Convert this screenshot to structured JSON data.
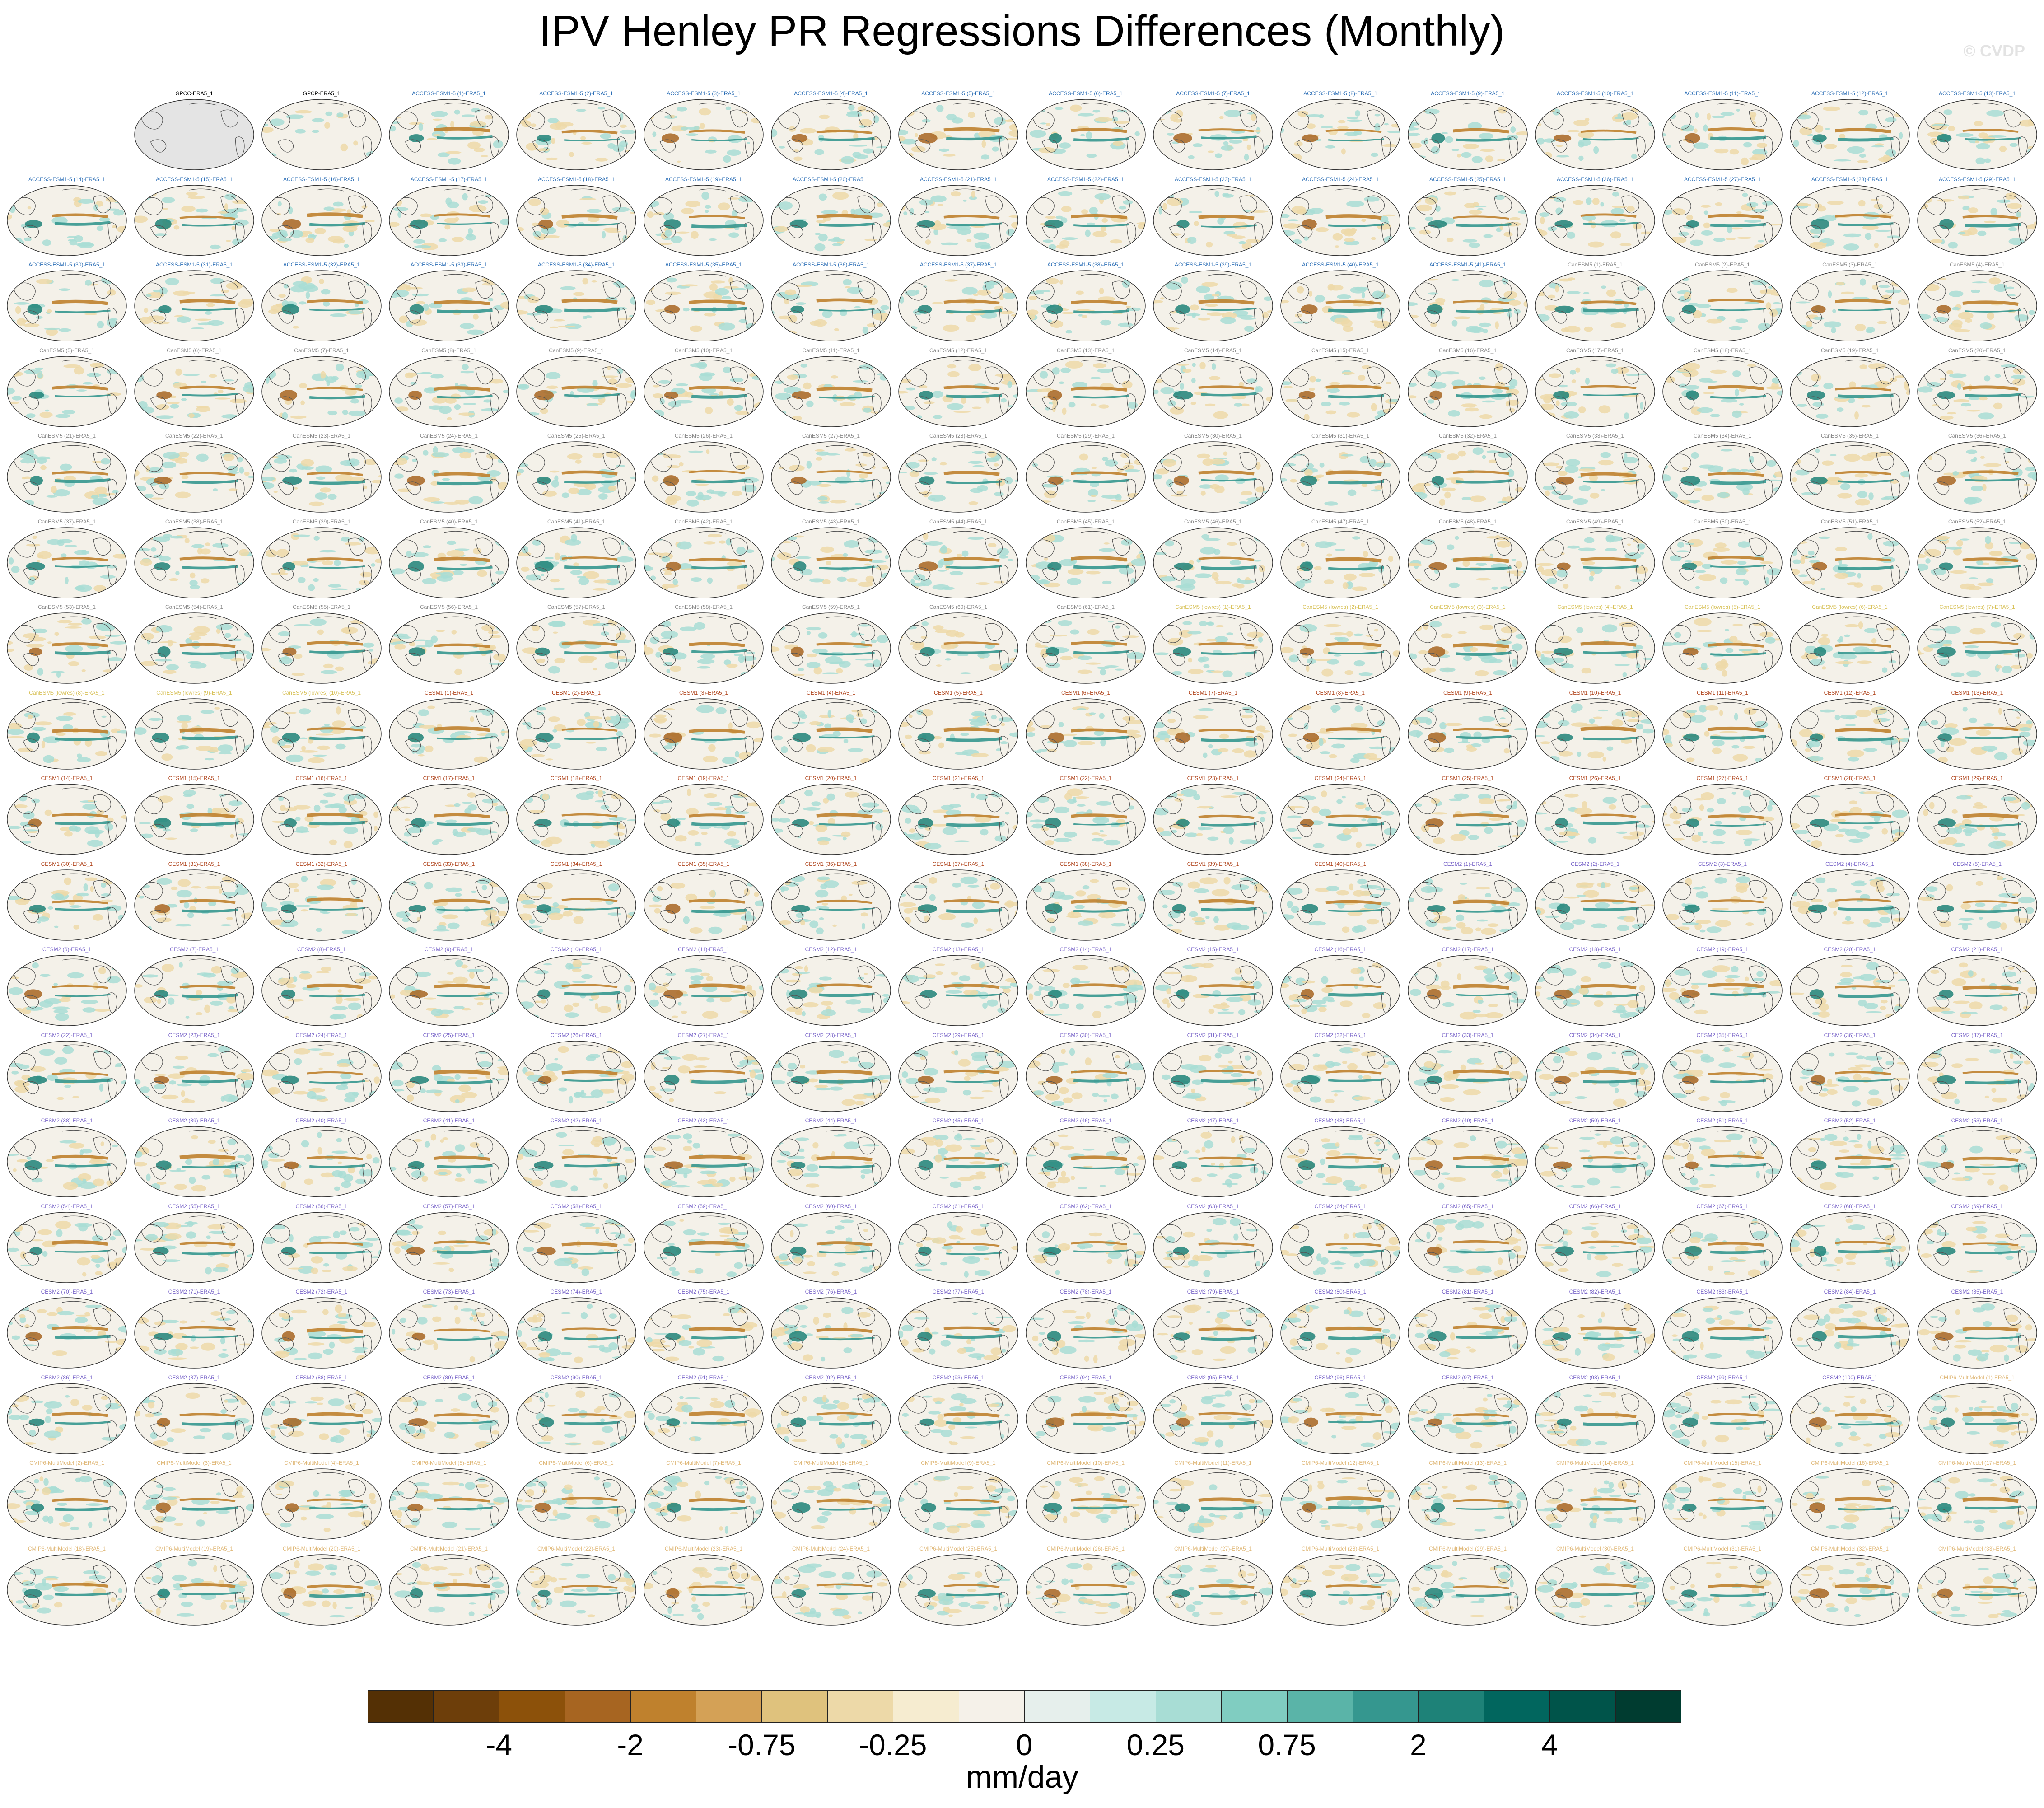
{
  "title": "IPV Henley PR Regressions Differences (Monthly)",
  "watermark": "© CVDP",
  "grid": {
    "columns": 16,
    "rows": 18,
    "panels": [
      {
        "label": "",
        "style": "blank"
      },
      {
        "label": "GPCC-ERA5_1",
        "style": "obs"
      },
      {
        "label": "GPCP-ERA5_1",
        "style": "obs2"
      }
    ],
    "model_groups": [
      {
        "prefix": "ACCESS-ESM1-5 ",
        "count": 41,
        "color": "#2a6db5"
      },
      {
        "prefix": "CanESM5 ",
        "count": 61,
        "color": "#8a8a8a"
      },
      {
        "prefix": "CanESM5 (lowres) ",
        "count": 10,
        "color": "#d8c25a"
      },
      {
        "prefix": "CESM1 ",
        "count": 40,
        "color": "#b0451d"
      },
      {
        "prefix": "CESM2 ",
        "count": 100,
        "color": "#7a66c9"
      },
      {
        "prefix": "CMIP6-MultiModel ",
        "count": 33,
        "color": "#e0b97a"
      }
    ],
    "label_suffix": "-ERA5_1"
  },
  "colorbar": {
    "colors": [
      "#543005",
      "#6d3e0a",
      "#8c510a",
      "#a76521",
      "#bf812d",
      "#d4a156",
      "#dfc27d",
      "#edd9a8",
      "#f6ecd0",
      "#f5f1e9",
      "#e6efec",
      "#c7eae5",
      "#a8ddd5",
      "#80cdc1",
      "#5ab4a8",
      "#35978f",
      "#1e8278",
      "#01665e",
      "#00544a",
      "#003c30"
    ],
    "tick_labels": [
      "-4",
      "-2",
      "-0.75",
      "-0.25",
      "0",
      "0.25",
      "0.75",
      "2",
      "4"
    ],
    "units": "mm/day"
  }
}
